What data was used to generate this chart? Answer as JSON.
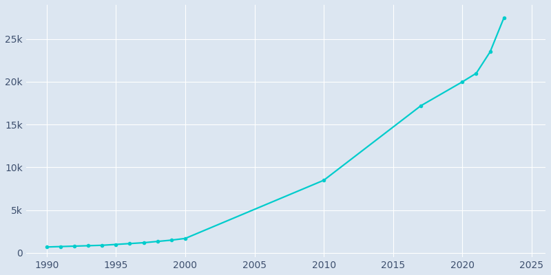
{
  "years": [
    1990,
    1991,
    1992,
    1993,
    1994,
    1995,
    1996,
    1997,
    1998,
    1999,
    2000,
    2010,
    2017,
    2020,
    2021,
    2022,
    2023
  ],
  "population": [
    700,
    750,
    800,
    850,
    900,
    1000,
    1100,
    1200,
    1350,
    1500,
    1700,
    8500,
    17200,
    20000,
    21000,
    23500,
    27500
  ],
  "line_color": "#00CCCC",
  "marker": "o",
  "marker_size": 3,
  "line_width": 1.6,
  "bg_color": "#dce6f1",
  "plot_bg_color": "#dce6f1",
  "grid_color": "#ffffff",
  "tick_color": "#3d4f6e",
  "xlim": [
    1988.5,
    2026
  ],
  "ylim": [
    -500,
    29000
  ],
  "xticks": [
    1990,
    1995,
    2000,
    2005,
    2010,
    2015,
    2020,
    2025
  ],
  "ytick_values": [
    0,
    5000,
    10000,
    15000,
    20000,
    25000
  ],
  "ytick_step": 5000
}
